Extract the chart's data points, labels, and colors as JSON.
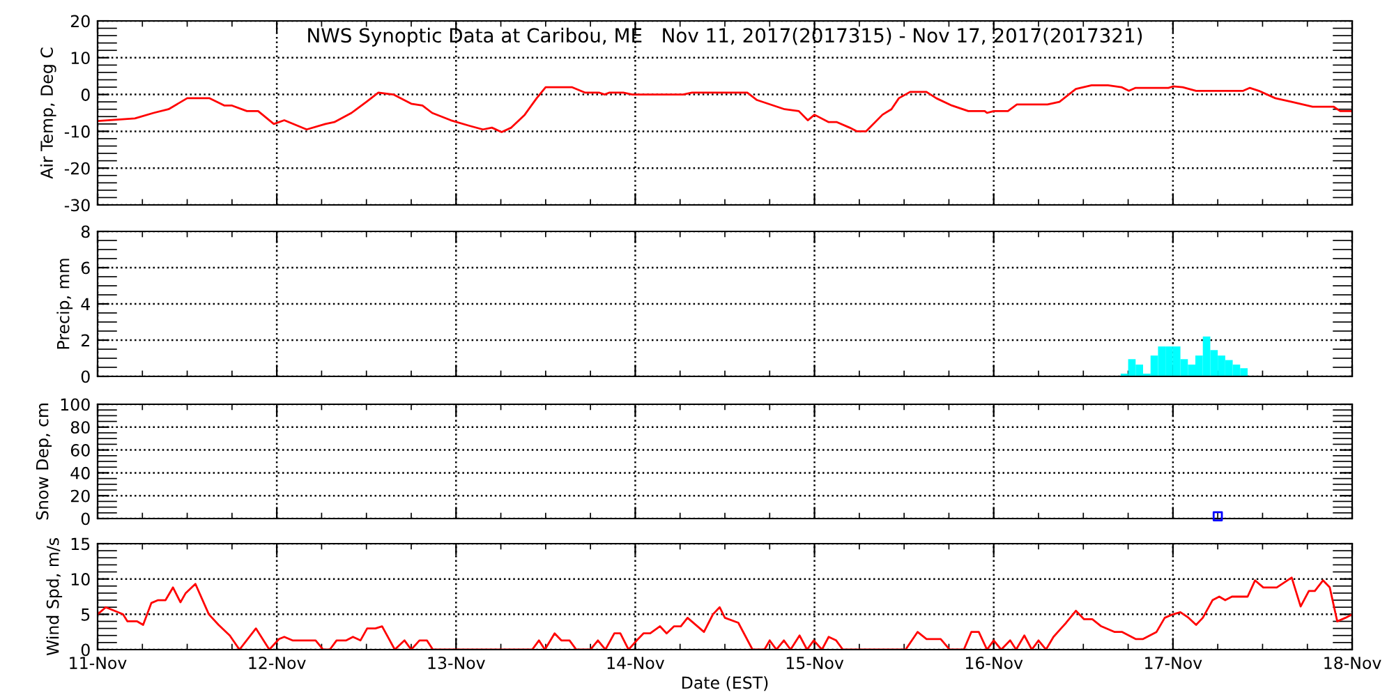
{
  "chart_data": [
    {
      "type": "line",
      "title": "NWS Synoptic Data at Caribou, ME   Nov 11, 2017(2017315) - Nov 17, 2017(2017321)",
      "ylabel": "Air Temp, Deg C",
      "tick_labels": "y",
      "grid": true,
      "marker": "none",
      "line_style": "solid",
      "xlim": [
        "2017-11-11",
        "2017-11-18"
      ],
      "xticks": [
        {
          "value": "2017-11-11",
          "label": null
        },
        {
          "value": "2017-11-12",
          "label": null
        },
        {
          "value": "2017-11-13",
          "label": null
        },
        {
          "value": "2017-11-14",
          "label": null
        },
        {
          "value": "2017-11-15",
          "label": null
        },
        {
          "value": "2017-11-16",
          "label": null
        },
        {
          "value": "2017-11-17",
          "label": null
        },
        {
          "value": "2017-11-18",
          "label": null
        }
      ],
      "ylim": [
        -30,
        20
      ],
      "yticks": [
        -30,
        -20,
        -10,
        0,
        10,
        20
      ],
      "series": [
        {
          "color": "#ff0000",
          "x": [
            "2017-11-11T00:00",
            "2017-11-11T05:00",
            "2017-11-11T07:30",
            "2017-11-11T09:30",
            "2017-11-11T12:00",
            "2017-11-11T15:00",
            "2017-11-11T17:00",
            "2017-11-11T18:00",
            "2017-11-11T20:00",
            "2017-11-11T21:30",
            "2017-11-11T23:36",
            "2017-11-12T01:00",
            "2017-11-12T04:00",
            "2017-11-12T06:30",
            "2017-11-12T07:42",
            "2017-11-12T10:00",
            "2017-11-12T12:00",
            "2017-11-12T13:36",
            "2017-11-12T15:36",
            "2017-11-12T18:00",
            "2017-11-12T19:30",
            "2017-11-12T20:48",
            "2017-11-12T23:18",
            "2017-11-13T01:48",
            "2017-11-13T03:36",
            "2017-11-13T04:48",
            "2017-11-13T06:06",
            "2017-11-13T07:24",
            "2017-11-13T09:12",
            "2017-11-13T10:48",
            "2017-11-13T12:00",
            "2017-11-13T15:30",
            "2017-11-13T17:18",
            "2017-11-13T19:12",
            "2017-11-13T19:54",
            "2017-11-13T20:30",
            "2017-11-13T22:24",
            "2017-11-13T23:36",
            "2017-11-14T06:24",
            "2017-11-14T07:36",
            "2017-11-14T15:00",
            "2017-11-14T16:18",
            "2017-11-14T20:00",
            "2017-11-14T21:54",
            "2017-11-14T23:06",
            "2017-11-15T00:00",
            "2017-11-15T01:54",
            "2017-11-15T03:00",
            "2017-11-15T04:42",
            "2017-11-15T05:42",
            "2017-11-15T06:54",
            "2017-11-15T09:06",
            "2017-11-15T10:18",
            "2017-11-15T11:18",
            "2017-11-15T12:48",
            "2017-11-15T15:00",
            "2017-11-15T16:18",
            "2017-11-15T18:24",
            "2017-11-15T20:36",
            "2017-11-15T22:48",
            "2017-11-15T23:06",
            "2017-11-16T00:00",
            "2017-11-16T01:54",
            "2017-11-16T03:06",
            "2017-11-16T07:12",
            "2017-11-16T08:48",
            "2017-11-16T11:00",
            "2017-11-16T13:06",
            "2017-11-16T15:18",
            "2017-11-16T17:06",
            "2017-11-16T18:06",
            "2017-11-16T19:00",
            "2017-11-16T23:24",
            "2017-11-17T00:00",
            "2017-11-17T01:18",
            "2017-11-17T03:06",
            "2017-11-17T09:24",
            "2017-11-17T10:18",
            "2017-11-17T11:30",
            "2017-11-17T13:42",
            "2017-11-17T15:54",
            "2017-11-17T18:42",
            "2017-11-17T21:30",
            "2017-11-17T22:24",
            "2017-11-18T00:00"
          ],
          "values": [
            -7.2,
            -6.5,
            -5,
            -4,
            -1,
            -1,
            -3,
            -3,
            -4.5,
            -4.5,
            -8,
            -7,
            -9.5,
            -8,
            -7.5,
            -5,
            -2,
            0.5,
            0,
            -2.5,
            -3,
            -5,
            -7,
            -8.5,
            -9.5,
            -9,
            -10.2,
            -9,
            -5.5,
            -1,
            2,
            2,
            0.5,
            0.5,
            0,
            0.5,
            0.5,
            0,
            0,
            0.5,
            0.5,
            -1.5,
            -4,
            -4.5,
            -7,
            -5.5,
            -7.5,
            -7.5,
            -9,
            -10,
            -10,
            -5.5,
            -4,
            -1,
            0.7,
            0.7,
            -1,
            -3,
            -4.5,
            -4.5,
            -5,
            -4.5,
            -4.5,
            -2.7,
            -2.7,
            -2,
            1.5,
            2.5,
            2.5,
            2,
            1,
            1.8,
            1.8,
            2.2,
            2,
            1,
            1,
            1.8,
            1,
            -1,
            -2,
            -3.3,
            -3.3,
            -4.5,
            -4.5
          ]
        }
      ]
    },
    {
      "type": "bar",
      "ylabel": "Precip, mm",
      "tick_labels": "y",
      "grid": true,
      "xlim": [
        "2017-11-11",
        "2017-11-18"
      ],
      "xticks": [
        {
          "value": "2017-11-11",
          "label": null
        },
        {
          "value": "2017-11-12",
          "label": null
        },
        {
          "value": "2017-11-13",
          "label": null
        },
        {
          "value": "2017-11-14",
          "label": null
        },
        {
          "value": "2017-11-15",
          "label": null
        },
        {
          "value": "2017-11-16",
          "label": null
        },
        {
          "value": "2017-11-17",
          "label": null
        },
        {
          "value": "2017-11-18",
          "label": null
        }
      ],
      "ylim": [
        0,
        8
      ],
      "yticks": [
        0,
        2,
        4,
        6,
        8
      ],
      "series": [
        {
          "color": "#00ffff",
          "x": [
            "2017-11-16T17:30",
            "2017-11-16T18:30",
            "2017-11-16T19:30",
            "2017-11-16T20:30",
            "2017-11-16T21:30",
            "2017-11-16T22:30",
            "2017-11-16T23:30",
            "2017-11-17T00:30",
            "2017-11-17T01:30",
            "2017-11-17T02:30",
            "2017-11-17T03:30",
            "2017-11-17T04:30",
            "2017-11-17T05:30",
            "2017-11-17T06:30",
            "2017-11-17T07:30",
            "2017-11-17T08:30",
            "2017-11-17T09:30"
          ],
          "values": [
            0.15,
            0.95,
            0.65,
            0.15,
            1.15,
            1.65,
            1.65,
            1.65,
            0.95,
            0.65,
            1.15,
            2.2,
            1.45,
            1.15,
            0.9,
            0.65,
            0.45
          ]
        }
      ]
    },
    {
      "type": "scatter",
      "ylabel": "Snow Dep, cm",
      "tick_labels": "y",
      "grid": true,
      "marker": "square",
      "xlim": [
        "2017-11-11",
        "2017-11-18"
      ],
      "xticks": [
        {
          "value": "2017-11-11",
          "label": null
        },
        {
          "value": "2017-11-12",
          "label": null
        },
        {
          "value": "2017-11-13",
          "label": null
        },
        {
          "value": "2017-11-14",
          "label": null
        },
        {
          "value": "2017-11-15",
          "label": null
        },
        {
          "value": "2017-11-16",
          "label": null
        },
        {
          "value": "2017-11-17",
          "label": null
        },
        {
          "value": "2017-11-18",
          "label": null
        }
      ],
      "ylim": [
        0,
        100
      ],
      "yticks": [
        0,
        20,
        40,
        60,
        80,
        100
      ],
      "series": [
        {
          "color": "#0000ff",
          "x": [
            "2017-11-17T06:00"
          ],
          "values": [
            2
          ]
        }
      ]
    },
    {
      "type": "line",
      "ylabel": "Wind Spd, m/s",
      "xlabel": "Date (EST)",
      "grid": true,
      "marker": "none",
      "line_style": "solid",
      "xlim": [
        "2017-11-11",
        "2017-11-18"
      ],
      "xticks": [
        {
          "value": "2017-11-11",
          "label": "11-Nov"
        },
        {
          "value": "2017-11-12",
          "label": "12-Nov"
        },
        {
          "value": "2017-11-13",
          "label": "13-Nov"
        },
        {
          "value": "2017-11-14",
          "label": "14-Nov"
        },
        {
          "value": "2017-11-15",
          "label": "15-Nov"
        },
        {
          "value": "2017-11-16",
          "label": "16-Nov"
        },
        {
          "value": "2017-11-17",
          "label": "17-Nov"
        },
        {
          "value": "2017-11-18",
          "label": "18-Nov"
        }
      ],
      "ylim": [
        0,
        15
      ],
      "yticks": [
        0,
        5,
        10,
        15
      ],
      "series": [
        {
          "color": "#ff0000",
          "x": [
            "2017-11-11T00:00",
            "2017-11-11T01:06",
            "2017-11-11T03:24",
            "2017-11-11T04:00",
            "2017-11-11T05:18",
            "2017-11-11T06:06",
            "2017-11-11T07:12",
            "2017-11-11T08:06",
            "2017-11-11T09:06",
            "2017-11-11T10:06",
            "2017-11-11T11:06",
            "2017-11-11T11:48",
            "2017-11-11T13:06",
            "2017-11-11T14:54",
            "2017-11-11T16:12",
            "2017-11-11T17:42",
            "2017-11-11T19:00",
            "2017-11-11T21:12",
            "2017-11-11T23:00",
            "2017-11-12T00:18",
            "2017-11-12T01:00",
            "2017-11-12T02:06",
            "2017-11-12T05:12",
            "2017-11-12T06:12",
            "2017-11-12T07:06",
            "2017-11-12T08:00",
            "2017-11-12T09:18",
            "2017-11-12T10:12",
            "2017-11-12T11:12",
            "2017-11-12T12:06",
            "2017-11-12T13:12",
            "2017-11-12T14:06",
            "2017-11-12T15:48",
            "2017-11-12T17:06",
            "2017-11-12T18:00",
            "2017-11-12T19:06",
            "2017-11-12T20:06",
            "2017-11-12T20:54",
            "2017-11-13T10:12",
            "2017-11-13T11:06",
            "2017-11-13T11:54",
            "2017-11-13T13:12",
            "2017-11-13T14:06",
            "2017-11-13T15:12",
            "2017-11-13T16:06",
            "2017-11-13T18:00",
            "2017-11-13T19:00",
            "2017-11-13T20:00",
            "2017-11-13T21:12",
            "2017-11-13T22:00",
            "2017-11-13T23:06",
            "2017-11-14T00:12",
            "2017-11-14T01:06",
            "2017-11-14T02:00",
            "2017-11-14T03:18",
            "2017-11-14T04:12",
            "2017-11-14T05:12",
            "2017-11-14T06:06",
            "2017-11-14T07:00",
            "2017-11-14T09:12",
            "2017-11-14T10:24",
            "2017-11-14T11:18",
            "2017-11-14T12:00",
            "2017-11-14T13:48",
            "2017-11-14T15:42",
            "2017-11-14T17:18",
            "2017-11-14T18:00",
            "2017-11-14T18:54",
            "2017-11-14T19:54",
            "2017-11-14T20:48",
            "2017-11-14T22:00",
            "2017-11-14T23:00",
            "2017-11-14T23:54",
            "2017-11-15T01:00",
            "2017-11-15T01:54",
            "2017-11-15T02:54",
            "2017-11-15T03:48",
            "2017-11-15T12:12",
            "2017-11-15T13:48",
            "2017-11-15T15:00",
            "2017-11-15T16:54",
            "2017-11-15T18:06",
            "2017-11-15T20:00",
            "2017-11-15T21:00",
            "2017-11-15T22:00",
            "2017-11-15T23:06",
            "2017-11-16T00:00",
            "2017-11-16T01:00",
            "2017-11-16T02:12",
            "2017-11-16T03:00",
            "2017-11-16T04:06",
            "2017-11-16T05:06",
            "2017-11-16T06:00",
            "2017-11-16T07:00",
            "2017-11-16T08:00",
            "2017-11-16T09:42",
            "2017-11-16T11:00",
            "2017-11-16T12:06",
            "2017-11-16T13:12",
            "2017-11-16T14:24",
            "2017-11-16T16:12",
            "2017-11-16T17:12",
            "2017-11-16T19:00",
            "2017-11-16T20:00",
            "2017-11-16T21:48",
            "2017-11-16T22:54",
            "2017-11-17T00:00",
            "2017-11-17T01:00",
            "2017-11-17T02:06",
            "2017-11-17T03:06",
            "2017-11-17T04:00",
            "2017-11-17T05:18",
            "2017-11-17T06:12",
            "2017-11-17T07:00",
            "2017-11-17T07:54",
            "2017-11-17T10:00",
            "2017-11-17T11:00",
            "2017-11-17T12:06",
            "2017-11-17T13:54",
            "2017-11-17T15:54",
            "2017-11-17T17:06",
            "2017-11-17T18:12",
            "2017-11-17T19:00",
            "2017-11-17T20:06",
            "2017-11-17T21:00",
            "2017-11-17T22:00",
            "2017-11-17T23:06",
            "2017-11-18T00:00"
          ],
          "values": [
            5,
            6,
            5,
            4,
            4,
            3.5,
            6.6,
            7,
            7,
            8.8,
            6.7,
            8,
            9.3,
            5,
            3.5,
            2,
            0,
            3,
            0,
            1.5,
            1.8,
            1.3,
            1.3,
            0,
            0,
            1.3,
            1.3,
            1.8,
            1.3,
            3,
            3,
            3.3,
            0,
            1.3,
            0,
            1.3,
            1.3,
            0,
            0,
            1.3,
            0,
            2.3,
            1.3,
            1.3,
            0,
            0,
            1.3,
            0,
            2.3,
            2.3,
            0,
            1.3,
            2.3,
            2.3,
            3.3,
            2.3,
            3.3,
            3.3,
            4.5,
            2.5,
            5,
            6,
            4.5,
            3.8,
            0,
            0,
            1.3,
            0,
            1.3,
            0,
            2,
            0,
            1.3,
            0,
            1.8,
            1.3,
            0,
            0,
            2.5,
            1.5,
            1.5,
            0,
            0,
            2.5,
            2.5,
            0,
            1.3,
            0,
            1.3,
            0,
            2,
            0,
            1.3,
            0,
            1.8,
            3.8,
            5.5,
            4.3,
            4.3,
            3.3,
            2.5,
            2.5,
            1.5,
            1.5,
            2.5,
            4.5,
            5,
            5.3,
            4.5,
            3.5,
            4.5,
            7,
            7.5,
            7,
            7.5,
            7.5,
            9.8,
            8.8,
            8.8,
            10.2,
            6.1,
            8.3,
            8.3,
            9.8,
            8.8,
            4,
            4.5,
            5
          ]
        }
      ]
    }
  ]
}
